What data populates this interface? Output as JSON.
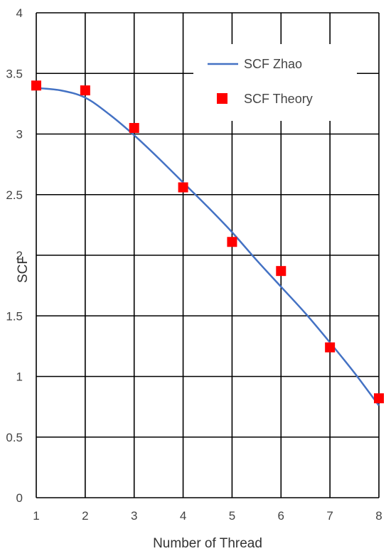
{
  "chart_data": {
    "type": "line",
    "xlabel": "Number of Thread",
    "ylabel": "SCF",
    "xlim": [
      1,
      8
    ],
    "ylim": [
      0,
      4
    ],
    "x_ticks": [
      "1",
      "2",
      "3",
      "4",
      "5",
      "6",
      "7",
      "8"
    ],
    "y_ticks": [
      "0",
      "0.5",
      "1",
      "1.5",
      "2",
      "2.5",
      "3",
      "3.5",
      "4"
    ],
    "grid": true,
    "legend_position": "top-right",
    "series": [
      {
        "name": "SCF Zhao",
        "kind": "line",
        "color": "#4472C4",
        "x": [
          1,
          1.5,
          2,
          2.5,
          3,
          3.5,
          4,
          4.5,
          5,
          5.5,
          6,
          6.5,
          7,
          7.5,
          8
        ],
        "y": [
          3.38,
          3.36,
          3.3,
          3.16,
          2.99,
          2.8,
          2.6,
          2.4,
          2.19,
          1.96,
          1.74,
          1.52,
          1.28,
          1.03,
          0.76
        ]
      },
      {
        "name": "SCF Theory",
        "kind": "scatter",
        "marker": "square",
        "color": "#FF0000",
        "x": [
          1,
          2,
          3,
          4,
          5,
          6,
          7,
          8
        ],
        "y": [
          3.4,
          3.36,
          3.05,
          2.56,
          2.11,
          1.87,
          1.24,
          0.82
        ]
      }
    ]
  }
}
